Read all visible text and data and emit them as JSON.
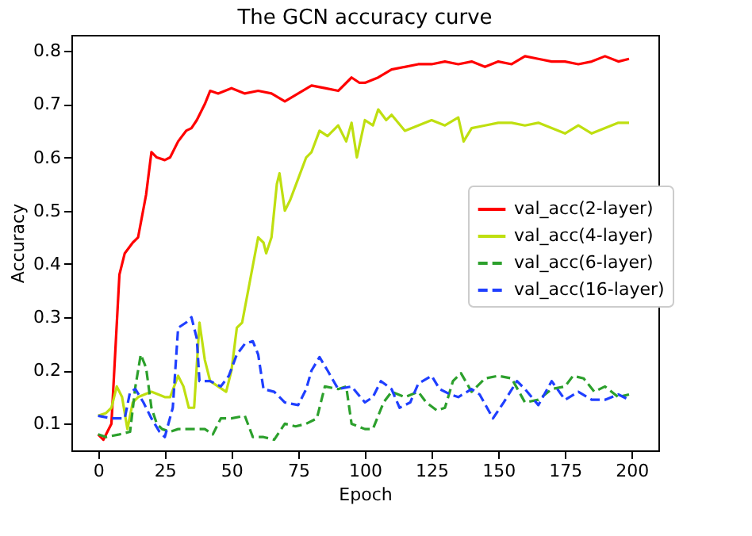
{
  "chart_data": {
    "type": "line",
    "title": "The GCN accuracy curve",
    "xlabel": "Epoch",
    "ylabel": "Accuracy",
    "xlim": [
      -10,
      210
    ],
    "xticks": [
      0,
      25,
      50,
      75,
      100,
      125,
      150,
      175,
      200
    ],
    "ylim": [
      0.05,
      0.83
    ],
    "yticks": [
      0.1,
      0.2,
      0.3,
      0.4,
      0.5,
      0.6,
      0.7,
      0.8
    ],
    "grid": false,
    "legend": "right",
    "marker": "none",
    "series": [
      {
        "name": "val_acc(2-layer)",
        "color": "#ff0000",
        "line_style": "solid",
        "x": [
          0,
          2,
          5,
          8,
          10,
          13,
          15,
          18,
          20,
          22,
          25,
          27,
          30,
          33,
          35,
          37,
          40,
          42,
          45,
          50,
          55,
          60,
          65,
          70,
          75,
          80,
          85,
          90,
          95,
          98,
          100,
          105,
          110,
          115,
          120,
          125,
          130,
          135,
          140,
          145,
          150,
          155,
          160,
          165,
          170,
          175,
          180,
          185,
          190,
          195,
          199
        ],
        "values": [
          0.08,
          0.07,
          0.1,
          0.38,
          0.42,
          0.44,
          0.45,
          0.53,
          0.61,
          0.6,
          0.595,
          0.6,
          0.63,
          0.65,
          0.655,
          0.67,
          0.7,
          0.725,
          0.72,
          0.73,
          0.72,
          0.725,
          0.72,
          0.705,
          0.72,
          0.735,
          0.73,
          0.725,
          0.75,
          0.74,
          0.74,
          0.75,
          0.765,
          0.77,
          0.775,
          0.775,
          0.78,
          0.775,
          0.78,
          0.77,
          0.78,
          0.775,
          0.79,
          0.785,
          0.78,
          0.78,
          0.775,
          0.78,
          0.79,
          0.78,
          0.785
        ]
      },
      {
        "name": "val_acc(4-layer)",
        "color": "#bfdf10",
        "line_style": "solid",
        "x": [
          0,
          3,
          5,
          7,
          9,
          11,
          13,
          15,
          20,
          25,
          27,
          30,
          32,
          34,
          36,
          38,
          40,
          42,
          45,
          48,
          50,
          52,
          54,
          57,
          60,
          62,
          63,
          65,
          67,
          68,
          70,
          72,
          75,
          78,
          80,
          83,
          86,
          90,
          93,
          95,
          97,
          100,
          103,
          105,
          108,
          110,
          115,
          120,
          125,
          130,
          135,
          137,
          140,
          145,
          150,
          155,
          160,
          165,
          170,
          175,
          180,
          185,
          190,
          195,
          199
        ],
        "values": [
          0.115,
          0.12,
          0.13,
          0.17,
          0.15,
          0.09,
          0.14,
          0.15,
          0.16,
          0.15,
          0.15,
          0.19,
          0.17,
          0.13,
          0.13,
          0.29,
          0.22,
          0.18,
          0.17,
          0.16,
          0.2,
          0.28,
          0.29,
          0.37,
          0.45,
          0.44,
          0.42,
          0.45,
          0.55,
          0.57,
          0.5,
          0.52,
          0.56,
          0.6,
          0.61,
          0.65,
          0.64,
          0.66,
          0.63,
          0.665,
          0.6,
          0.67,
          0.66,
          0.69,
          0.67,
          0.68,
          0.65,
          0.66,
          0.67,
          0.66,
          0.675,
          0.63,
          0.655,
          0.66,
          0.665,
          0.665,
          0.66,
          0.665,
          0.655,
          0.645,
          0.66,
          0.645,
          0.655,
          0.665,
          0.665
        ]
      },
      {
        "name": "val_acc(6-layer)",
        "color": "#2ca02c",
        "line_style": "dashed",
        "x": [
          0,
          3,
          8,
          12,
          14,
          16,
          18,
          20,
          22,
          24,
          27,
          30,
          35,
          40,
          43,
          46,
          50,
          55,
          58,
          62,
          66,
          70,
          74,
          78,
          82,
          85,
          90,
          93,
          95,
          100,
          103,
          107,
          110,
          115,
          120,
          123,
          127,
          130,
          133,
          136,
          140,
          145,
          150,
          155,
          160,
          165,
          170,
          175,
          178,
          182,
          186,
          190,
          195,
          199
        ],
        "values": [
          0.08,
          0.075,
          0.08,
          0.085,
          0.17,
          0.23,
          0.205,
          0.13,
          0.1,
          0.09,
          0.085,
          0.09,
          0.09,
          0.09,
          0.08,
          0.11,
          0.11,
          0.115,
          0.075,
          0.075,
          0.07,
          0.1,
          0.095,
          0.1,
          0.11,
          0.17,
          0.165,
          0.17,
          0.1,
          0.09,
          0.09,
          0.14,
          0.16,
          0.15,
          0.16,
          0.14,
          0.125,
          0.13,
          0.18,
          0.195,
          0.16,
          0.185,
          0.19,
          0.185,
          0.14,
          0.145,
          0.165,
          0.17,
          0.19,
          0.185,
          0.16,
          0.17,
          0.15,
          0.155
        ]
      },
      {
        "name": "val_acc(16-layer)",
        "color": "#1f3fff",
        "line_style": "dashed",
        "x": [
          0,
          5,
          10,
          12,
          14,
          17,
          20,
          23,
          25,
          28,
          30,
          33,
          35,
          37,
          38,
          42,
          46,
          49,
          52,
          55,
          58,
          60,
          62,
          66,
          70,
          75,
          78,
          80,
          83,
          86,
          90,
          95,
          100,
          103,
          106,
          110,
          113,
          117,
          120,
          125,
          128,
          132,
          135,
          140,
          143,
          148,
          152,
          157,
          160,
          165,
          170,
          175,
          180,
          185,
          190,
          195,
          199
        ],
        "values": [
          0.115,
          0.11,
          0.11,
          0.16,
          0.165,
          0.14,
          0.11,
          0.085,
          0.075,
          0.13,
          0.28,
          0.29,
          0.3,
          0.26,
          0.18,
          0.18,
          0.17,
          0.19,
          0.23,
          0.25,
          0.255,
          0.23,
          0.165,
          0.16,
          0.14,
          0.135,
          0.165,
          0.2,
          0.225,
          0.2,
          0.165,
          0.17,
          0.14,
          0.15,
          0.18,
          0.165,
          0.13,
          0.14,
          0.175,
          0.19,
          0.165,
          0.155,
          0.15,
          0.165,
          0.155,
          0.11,
          0.14,
          0.18,
          0.165,
          0.135,
          0.18,
          0.145,
          0.16,
          0.145,
          0.145,
          0.155,
          0.145
        ]
      }
    ]
  }
}
